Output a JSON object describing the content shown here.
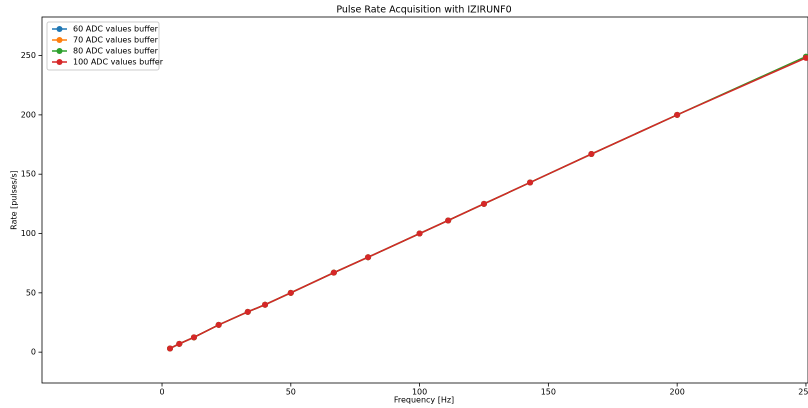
{
  "chart_data": {
    "type": "line",
    "title": "Pulse Rate Acquisition with IZIRUNF0",
    "x_label": "Frequency [Hz]",
    "y_label": "Rate [pulses/s]",
    "x": [
      3.1,
      6.7,
      12.4,
      22,
      33.3,
      40,
      50,
      66.7,
      80,
      100,
      111.1,
      125,
      142.9,
      166.7,
      200,
      250
    ],
    "series": [
      {
        "name": "60 ADC values buffer",
        "color": "#1f77b4",
        "values": [
          3.1,
          7,
          12.5,
          23,
          34,
          40,
          50,
          67,
          80,
          100,
          111,
          125,
          143,
          167,
          200,
          249
        ]
      },
      {
        "name": "70 ADC values buffer",
        "color": "#ff7f0e",
        "values": [
          3.1,
          7,
          12.5,
          23,
          34,
          40,
          50,
          67,
          80,
          100,
          111,
          125,
          143,
          167,
          200,
          249
        ]
      },
      {
        "name": "80 ADC values buffer",
        "color": "#2ca02c",
        "values": [
          3.1,
          7,
          12.5,
          23,
          34,
          40,
          50,
          67,
          80,
          100,
          111,
          125,
          143,
          167,
          200,
          249
        ]
      },
      {
        "name": "100 ADC values buffer",
        "color": "#d62728",
        "values": [
          3.1,
          7,
          12.5,
          23,
          34,
          40,
          50,
          67,
          80,
          100,
          111,
          125,
          143,
          167,
          200,
          248
        ]
      }
    ],
    "xlim": [
      -46.6,
      250.8
    ],
    "ylim": [
      -26,
      282.5
    ],
    "xticks": [
      0,
      50,
      100,
      150,
      200,
      250
    ],
    "yticks": [
      0,
      50,
      100,
      150,
      200,
      250
    ],
    "grid": false,
    "legend": "upper-left"
  }
}
